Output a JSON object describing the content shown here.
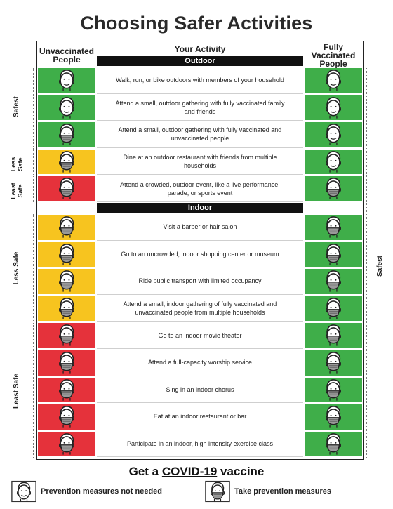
{
  "title": "Choosing Safer Activities",
  "headers": {
    "unvaccinated": "Unvaccinated People",
    "activity": "Your Activity",
    "vaccinated": "Fully Vaccinated People"
  },
  "sections": {
    "outdoor": "Outdoor",
    "indoor": "Indoor"
  },
  "side_labels": {
    "safest": "Safest",
    "less_safe_outdoor": "Less Safe",
    "least_safe_outdoor": "Least Safe",
    "less_safe_indoor": "Less Safe",
    "least_safe_indoor": "Least Safe",
    "vaccinated_safest": "Safest"
  },
  "colors": {
    "green": "#3fae49",
    "yellow": "#f7c41f",
    "red": "#e5323b"
  },
  "outdoor_rows": [
    {
      "activity": "Walk, run, or bike outdoors with members of your household",
      "risk": "green",
      "unvac_mask": false,
      "vac_mask": false
    },
    {
      "activity": "Attend a small, outdoor gathering with fully vaccinated family and friends",
      "risk": "green",
      "unvac_mask": false,
      "vac_mask": false
    },
    {
      "activity": "Attend a small, outdoor gathering with fully vaccinated and unvaccinated people",
      "risk": "green",
      "unvac_mask": true,
      "vac_mask": false
    },
    {
      "activity": "Dine at an outdoor restaurant with friends from multiple households",
      "risk": "yellow",
      "unvac_mask": true,
      "vac_mask": false
    },
    {
      "activity": "Attend a crowded, outdoor event, like a live performance, parade, or sports event",
      "risk": "red",
      "unvac_mask": true,
      "vac_mask": true
    }
  ],
  "indoor_rows": [
    {
      "activity": "Visit a barber or hair salon",
      "risk": "yellow",
      "unvac_mask": true,
      "vac_mask": true
    },
    {
      "activity": "Go to an uncrowded, indoor shopping center or museum",
      "risk": "yellow",
      "unvac_mask": true,
      "vac_mask": true
    },
    {
      "activity": "Ride public transport with limited occupancy",
      "risk": "yellow",
      "unvac_mask": true,
      "vac_mask": true
    },
    {
      "activity": "Attend a small, indoor gathering of fully vaccinated and unvaccinated people from multiple households",
      "risk": "yellow",
      "unvac_mask": true,
      "vac_mask": true
    },
    {
      "activity": "Go to an indoor movie theater",
      "risk": "red",
      "unvac_mask": true,
      "vac_mask": true
    },
    {
      "activity": "Attend a full-capacity worship service",
      "risk": "red",
      "unvac_mask": true,
      "vac_mask": true
    },
    {
      "activity": "Sing in an indoor chorus",
      "risk": "red",
      "unvac_mask": true,
      "vac_mask": true
    },
    {
      "activity": "Eat at an indoor restaurant or bar",
      "risk": "red",
      "unvac_mask": true,
      "vac_mask": true
    },
    {
      "activity": "Participate in an indoor, high intensity exercise class",
      "risk": "red",
      "unvac_mask": true,
      "vac_mask": true
    }
  ],
  "footer": {
    "prefix": "Get a ",
    "highlight": "COVID-19",
    "suffix": " vaccine",
    "legend_no_mask": "Prevention measures not needed",
    "legend_mask": "Take prevention measures"
  }
}
